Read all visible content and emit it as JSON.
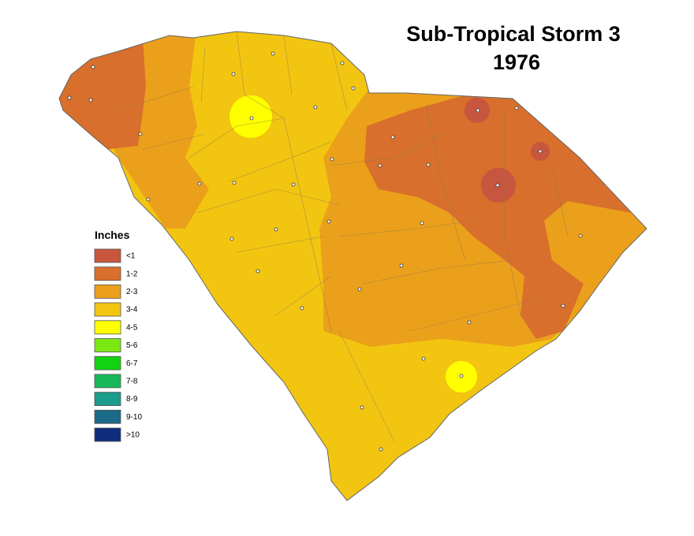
{
  "title": [
    "Sub-Tropical Storm 3",
    "1976"
  ],
  "legend": {
    "title": "Inches",
    "items": [
      {
        "label": "<1",
        "color": "#c8563e"
      },
      {
        "label": "1-2",
        "color": "#d86f2c"
      },
      {
        "label": "2-3",
        "color": "#eba01b"
      },
      {
        "label": "3-4",
        "color": "#f2c511"
      },
      {
        "label": "4-5",
        "color": "#ffff00"
      },
      {
        "label": "5-6",
        "color": "#7be813"
      },
      {
        "label": "6-7",
        "color": "#13d213"
      },
      {
        "label": "7-8",
        "color": "#17b85a"
      },
      {
        "label": "8-9",
        "color": "#1c9c8a"
      },
      {
        "label": "9-10",
        "color": "#1b6a88"
      },
      {
        "label": ">10",
        "color": "#0e2b7c"
      }
    ]
  }
}
